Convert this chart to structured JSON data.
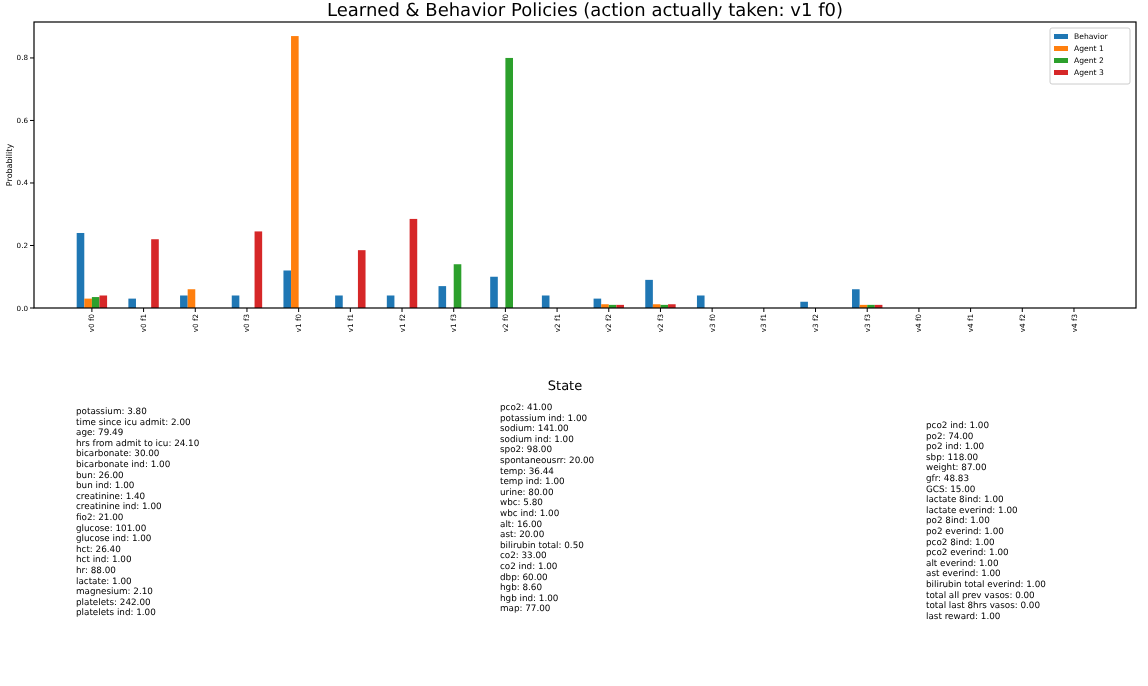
{
  "chart_data": {
    "type": "bar",
    "title": "Learned & Behavior Policies (action actually taken: v1 f0)",
    "ylabel": "Probability",
    "categories": [
      "v0 f0",
      "v0 f1",
      "v0 f2",
      "v0 f3",
      "v1 f0",
      "v1 f1",
      "v1 f2",
      "v1 f3",
      "v2 f0",
      "v2 f1",
      "v2 f2",
      "v2 f3",
      "v3 f0",
      "v3 f1",
      "v3 f2",
      "v3 f3",
      "v4 f0",
      "v4 f1",
      "v4 f2",
      "v4 f3"
    ],
    "series": [
      {
        "name": "Behavior",
        "color": "#1f77b4",
        "values": [
          0.24,
          0.03,
          0.04,
          0.04,
          0.12,
          0.04,
          0.04,
          0.07,
          0.1,
          0.04,
          0.03,
          0.09,
          0.04,
          0,
          0.02,
          0.06,
          0,
          0,
          0,
          0
        ]
      },
      {
        "name": "Agent 1",
        "color": "#ff7f0e",
        "values": [
          0.03,
          0,
          0.06,
          0,
          0.87,
          0,
          0,
          0,
          0,
          0,
          0.012,
          0.012,
          0,
          0,
          0,
          0.01,
          0,
          0,
          0,
          0
        ]
      },
      {
        "name": "Agent 2",
        "color": "#2ca02c",
        "values": [
          0.035,
          0,
          0,
          0,
          0,
          0,
          0,
          0.14,
          0.8,
          0,
          0.01,
          0.01,
          0,
          0,
          0,
          0.01,
          0,
          0,
          0,
          0
        ]
      },
      {
        "name": "Agent 3",
        "color": "#d62728",
        "values": [
          0.04,
          0.22,
          0,
          0.245,
          0,
          0.185,
          0.285,
          0,
          0,
          0,
          0.01,
          0.012,
          0,
          0,
          0,
          0.01,
          0,
          0,
          0,
          0
        ]
      }
    ],
    "ylim": [
      0,
      0.915
    ],
    "yticks": [
      {
        "value": 0,
        "label": "0.0"
      },
      {
        "value": 0.2,
        "label": "0.2"
      },
      {
        "value": 0.4,
        "label": "0.4"
      },
      {
        "value": 0.6,
        "label": "0.6"
      },
      {
        "value": 0.8,
        "label": "0.8"
      }
    ],
    "legend": "top right",
    "annotations": [
      "State",
      "potassium: 3.80\ntime since icu admit: 2.00\nage: 79.49\nhrs from admit to icu: 24.10\nbicarbonate: 30.00\nbicarbonate ind: 1.00\nbun: 26.00\nbun ind: 1.00\ncreatinine: 1.40\ncreatinine ind: 1.00\nfio2: 21.00\nglucose: 101.00\nglucose ind: 1.00\nhct: 26.40\nhct ind: 1.00\nhr: 88.00\nlactate: 1.00\nmagnesium: 2.10\nplatelets: 242.00\nplatelets ind: 1.00",
      "pco2: 41.00\npotassium ind: 1.00\nsodium: 141.00\nsodium ind: 1.00\nspo2: 98.00\nspontaneousrr: 20.00\ntemp: 36.44\ntemp ind: 1.00\nurine: 80.00\nwbc: 5.80\nwbc ind: 1.00\nalt: 16.00\nast: 20.00\nbilirubin total: 0.50\nco2: 33.00\nco2 ind: 1.00\ndbp: 60.00\nhgb: 8.60\nhgb ind: 1.00\nmap: 77.00",
      "pco2 ind: 1.00\npo2: 74.00\npo2 ind: 1.00\nsbp: 118.00\nweight: 87.00\ngfr: 48.83\nGCS: 15.00\nlactate 8ind: 1.00\nlactate everind: 1.00\npo2 8ind: 1.00\npo2 everind: 1.00\npco2 8ind: 1.00\npco2 everind: 1.00\nalt everind: 1.00\nast everind: 1.00\nbilirubin total everind: 1.00\ntotal all prev vasos: 0.00\ntotal last 8hrs vasos: 0.00\nlast reward: 1.00"
    ]
  }
}
